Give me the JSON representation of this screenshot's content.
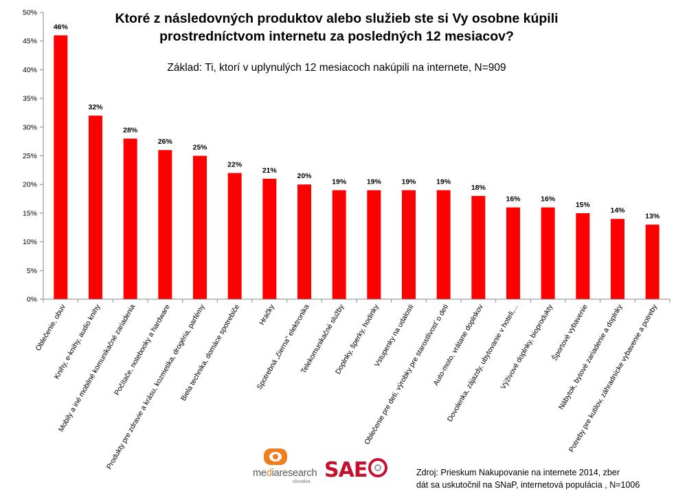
{
  "chart_data": {
    "type": "bar",
    "title": "Ktoré z následovných produktov alebo služieb ste si Vy osobne kúpili prostredníctvom internetu za posledných 12 mesiacov?",
    "title_lines": [
      "Ktoré z následovných produktov alebo služieb ste si Vy osobne kúpili",
      "prostredníctvom internetu za posledných 12 mesiacov?"
    ],
    "subtitle": "Základ: Ti, ktorí v uplynulých 12 mesiacoch nakúpili na internete, N=909",
    "categories": [
      "Oblečenie, obuv",
      "Knihy, e-knihy, audio knihy",
      "Mobily a iné mobilné komunikačné zariadenia",
      "Počítače, notebooky a hardware",
      "Produkty pre zdravie a krásu, kozmetika, drogéria, parfémy",
      "Biela technika, domáce spotrebiče",
      "Hračky",
      "Spotrebná „čierna\" elektronika",
      "Telekomunikačné služby",
      "Doplnky, šperky, hodinky",
      "Vstupenky na udalosti",
      "Oblečenie pre deti, výrobky pre starostlivosť o deti",
      "Auto-moto, vrátane doplnkov",
      "Dovolenka, zájazdy, ubytovanie v hoteli,...",
      "Výživové doplnky, bioprodukty",
      "Športové vybavenie",
      "Nábytok, bytové zariadenie a doplnky",
      "Potreby pre kutilov, záhradnícke vybavenie a potreby"
    ],
    "values": [
      46,
      32,
      28,
      26,
      25,
      22,
      21,
      20,
      19,
      19,
      19,
      19,
      18,
      16,
      16,
      15,
      14,
      13
    ],
    "value_labels": [
      "46%",
      "32%",
      "28%",
      "26%",
      "25%",
      "22%",
      "21%",
      "20%",
      "19%",
      "19%",
      "19%",
      "19%",
      "18%",
      "16%",
      "16%",
      "15%",
      "14%",
      "13%"
    ],
    "ylim": [
      0,
      50
    ],
    "yticks": [
      0,
      5,
      10,
      15,
      20,
      25,
      30,
      35,
      40,
      45,
      50
    ],
    "ytick_labels": [
      "0%",
      "5%",
      "10%",
      "15%",
      "20%",
      "25%",
      "30%",
      "35%",
      "40%",
      "45%",
      "50%"
    ],
    "bar_color": "#ff0000",
    "grid": false,
    "xlabel": "",
    "ylabel": ""
  },
  "logos": {
    "mediaresearch_pre": "me",
    "mediaresearch_accent": "d",
    "mediaresearch_post": "iaresearch",
    "mediaresearch_country": "slovakia",
    "saec_text": "SAE"
  },
  "source": {
    "line1": "Zdroj:  Prieskum Nakupovanie na internete 2014, zber",
    "line2": "dát sa uskutočnil na SNaP, internetová populácia , N=1006"
  }
}
